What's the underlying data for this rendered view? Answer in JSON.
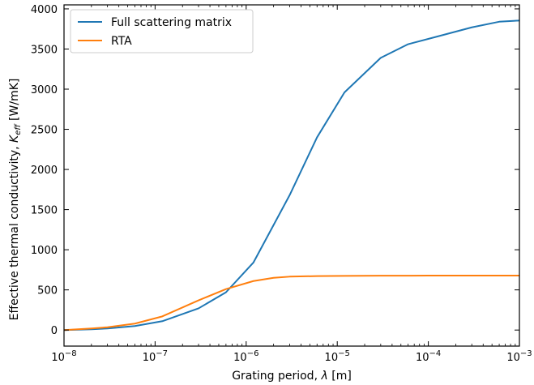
{
  "chart_data": {
    "type": "line",
    "xscale": "log",
    "xlim": [
      1e-08,
      0.001
    ],
    "ylim": [
      -200,
      4050
    ],
    "xlabel_prefix": "Grating period, ",
    "xlabel_symbol": "λ",
    "xlabel_suffix": " [m]",
    "ylabel_prefix": "Effective thermal conductivity, ",
    "ylabel_symbol": "K",
    "ylabel_subscript": "eff",
    "ylabel_suffix": " [W/mK]",
    "y_ticks": [
      0,
      500,
      1000,
      1500,
      2000,
      2500,
      3000,
      3500,
      4000
    ],
    "x_ticks": [
      {
        "value": 1e-08,
        "base": "10",
        "exp": "−8"
      },
      {
        "value": 1e-07,
        "base": "10",
        "exp": "−7"
      },
      {
        "value": 1e-06,
        "base": "10",
        "exp": "−6"
      },
      {
        "value": 1e-05,
        "base": "10",
        "exp": "−5"
      },
      {
        "value": 0.0001,
        "base": "10",
        "exp": "−4"
      },
      {
        "value": 0.001,
        "base": "10",
        "exp": "−3"
      }
    ],
    "legend_position": "top-left",
    "grid": false,
    "series": [
      {
        "name": "Full scattering matrix",
        "color": "#1f77b4",
        "x": [
          1e-08,
          2e-08,
          3e-08,
          6e-08,
          1.2e-07,
          3e-07,
          6e-07,
          1.2e-06,
          3e-06,
          6e-06,
          1.2e-05,
          3e-05,
          6e-05,
          0.00012,
          0.0003,
          0.0006,
          0.001
        ],
        "y": [
          0,
          10,
          20,
          50,
          110,
          270,
          470,
          840,
          1680,
          2400,
          2960,
          3390,
          3560,
          3650,
          3770,
          3840,
          3855
        ]
      },
      {
        "name": "RTA",
        "color": "#ff7f0e",
        "x": [
          1e-08,
          2e-08,
          3e-08,
          6e-08,
          1.2e-07,
          3e-07,
          6e-07,
          1.2e-06,
          2e-06,
          3e-06,
          6e-06,
          1.2e-05,
          3e-05,
          0.0001,
          0.001
        ],
        "y": [
          0,
          20,
          35,
          80,
          170,
          370,
          510,
          610,
          650,
          665,
          672,
          675,
          677,
          678,
          678
        ]
      }
    ]
  }
}
